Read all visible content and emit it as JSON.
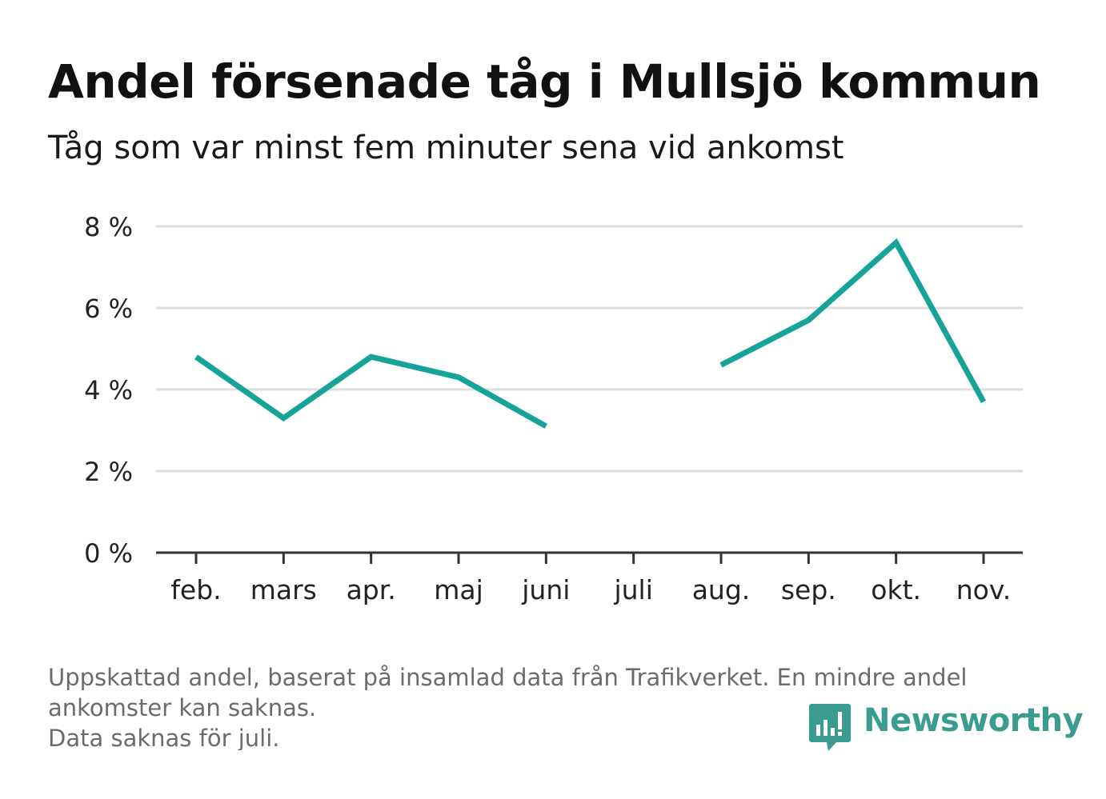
{
  "title": "Andel försenade tåg i Mullsjö kommun",
  "subtitle": "Tåg som var minst fem minuter sena vid ankomst",
  "footnote": [
    "Uppskattad andel, baserat på insamlad data från Trafikverket. En mindre andel",
    "ankomster kan saknas.",
    "Data saknas för juli."
  ],
  "logo": {
    "text": "Newsworthy",
    "icon": "bar-chart-speech-bubble-icon",
    "color": "#3a9c8e"
  },
  "chart_data": {
    "type": "line",
    "categories": [
      "feb.",
      "mars",
      "apr.",
      "maj",
      "juni",
      "juli",
      "aug.",
      "sep.",
      "okt.",
      "nov."
    ],
    "series": [
      {
        "values": [
          4.8,
          3.3,
          4.8,
          4.3,
          3.1,
          null,
          4.6,
          5.7,
          7.6,
          3.7
        ],
        "color": "#16a39a"
      }
    ],
    "ylim": [
      0,
      8
    ],
    "yticks": [
      0,
      2,
      4,
      6,
      8
    ],
    "ytick_labels": [
      "0 %",
      "2 %",
      "4 %",
      "6 %",
      "8 %"
    ],
    "grid": true,
    "gridcolor": "#dddddd"
  }
}
